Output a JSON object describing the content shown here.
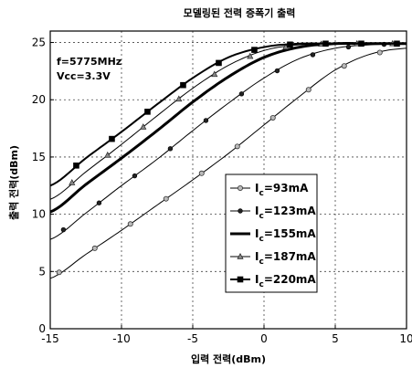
{
  "chart_data": {
    "type": "line",
    "title": "모델링된 전력 증폭기 출력",
    "xlabel": "입력 전력(dBm)",
    "ylabel": "출력 전력(dBm)",
    "xlim": [
      -15,
      10
    ],
    "ylim": [
      0,
      26
    ],
    "xticks": [
      -15,
      -10,
      -5,
      0,
      5,
      10
    ],
    "xtick_labels": [
      "-15",
      "-10",
      "-5",
      "0",
      "5",
      "10"
    ],
    "yticks": [
      0,
      5,
      10,
      15,
      20,
      25
    ],
    "ytick_labels": [
      "0",
      "5",
      "10",
      "15",
      "20",
      "25"
    ],
    "grid": true,
    "legend_position": "lower-right",
    "annotations": [
      "f=5775MHz",
      "Vcc=3.3V"
    ],
    "x": [
      -15,
      -12.5,
      -10,
      -7.5,
      -5,
      -2.5,
      0,
      2.5,
      5,
      7.5,
      10
    ],
    "series": [
      {
        "name": "Ic=93mA",
        "label_main": "I",
        "label_sub": "c",
        "label_rest": "=93mA",
        "marker": "circle",
        "stroke_width": 1,
        "values": [
          4.4,
          6.5,
          8.6,
          10.8,
          13.0,
          15.3,
          17.8,
          20.3,
          22.6,
          24.0,
          24.5
        ]
      },
      {
        "name": "Ic=123mA",
        "label_main": "I",
        "label_sub": "c",
        "label_rest": "=123mA",
        "marker": "dot",
        "stroke_width": 1,
        "values": [
          7.8,
          10.1,
          12.5,
          14.8,
          17.3,
          19.7,
          21.9,
          23.6,
          24.5,
          24.8,
          24.9
        ]
      },
      {
        "name": "Ic=155mA",
        "label_main": "I",
        "label_sub": "c",
        "label_rest": "=155mA",
        "marker": "none",
        "stroke_width": 3,
        "values": [
          10.2,
          12.6,
          14.9,
          17.3,
          19.8,
          22.0,
          23.7,
          24.6,
          24.9,
          24.9,
          24.9
        ]
      },
      {
        "name": "Ic=187mA",
        "label_main": "I",
        "label_sub": "c",
        "label_rest": "=187mA",
        "marker": "triangle",
        "stroke_width": 1,
        "values": [
          11.3,
          13.7,
          16.1,
          18.6,
          21.0,
          23.0,
          24.3,
          24.8,
          24.9,
          24.9,
          24.9
        ]
      },
      {
        "name": "Ic=220mA",
        "label_main": "I",
        "label_sub": "c",
        "label_rest": "=220mA",
        "marker": "square",
        "stroke_width": 2,
        "values": [
          12.5,
          14.9,
          17.2,
          19.6,
          21.9,
          23.7,
          24.6,
          24.9,
          24.9,
          24.9,
          24.9
        ]
      }
    ]
  }
}
